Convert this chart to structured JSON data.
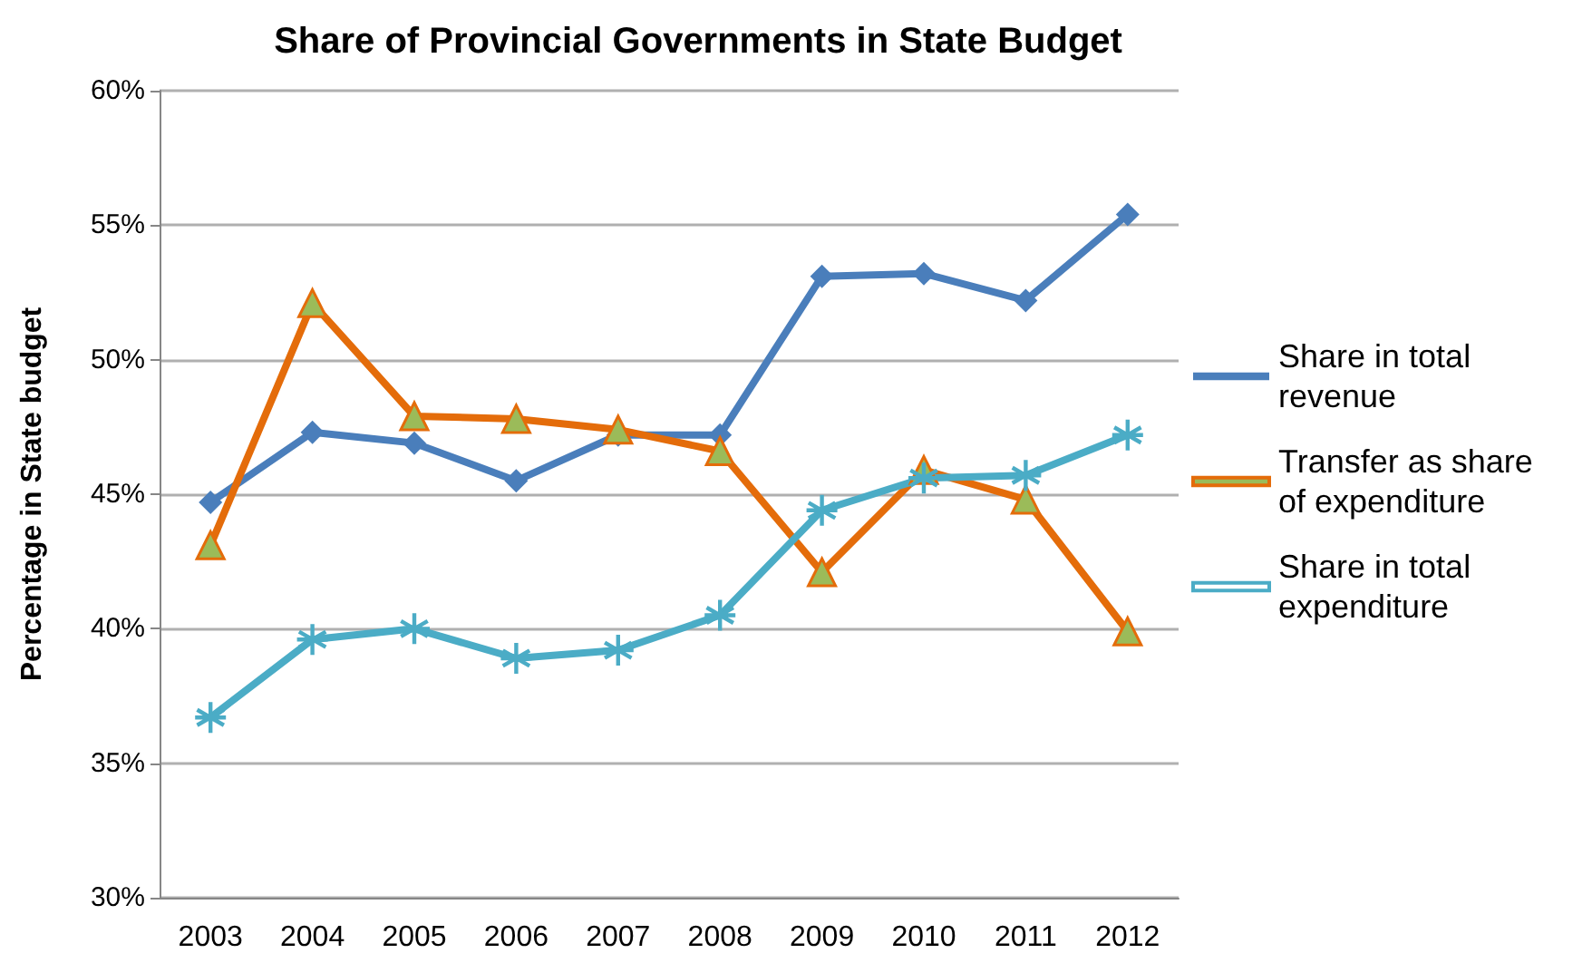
{
  "chart_data": {
    "type": "line",
    "title": "Share of Provincial Governments in State Budget",
    "ylabel": "Percentage in State budget",
    "categories": [
      "2003",
      "2004",
      "2005",
      "2006",
      "2007",
      "2008",
      "2009",
      "2010",
      "2011",
      "2012"
    ],
    "series": [
      {
        "name": "Share in total revenue",
        "color": "#4a7ebb",
        "marker": "diamond",
        "values": [
          44.7,
          47.3,
          46.9,
          45.5,
          47.2,
          47.2,
          53.1,
          53.2,
          52.2,
          55.4
        ]
      },
      {
        "name": "Transfer as share of expenditure",
        "color": "#e46c0a",
        "marker": "triangle",
        "values": [
          43.1,
          52.1,
          47.9,
          47.8,
          47.4,
          46.6,
          42.1,
          45.9,
          44.8,
          39.9
        ]
      },
      {
        "name": "Share in total expenditure",
        "color": "#4bacc6",
        "marker": "cross",
        "values": [
          36.7,
          39.6,
          40.0,
          38.9,
          39.2,
          40.5,
          44.4,
          45.6,
          45.7,
          47.2
        ]
      }
    ],
    "ylim": [
      30,
      60
    ],
    "yticks": [
      {
        "value": 30,
        "label": "30%"
      },
      {
        "value": 35,
        "label": "35%"
      },
      {
        "value": 40,
        "label": "40%"
      },
      {
        "value": 45,
        "label": "45%"
      },
      {
        "value": 50,
        "label": "50%"
      },
      {
        "value": 55,
        "label": "55%"
      },
      {
        "value": 60,
        "label": "60%"
      }
    ],
    "grid": "y",
    "legend": "right",
    "line_style": "solid"
  }
}
